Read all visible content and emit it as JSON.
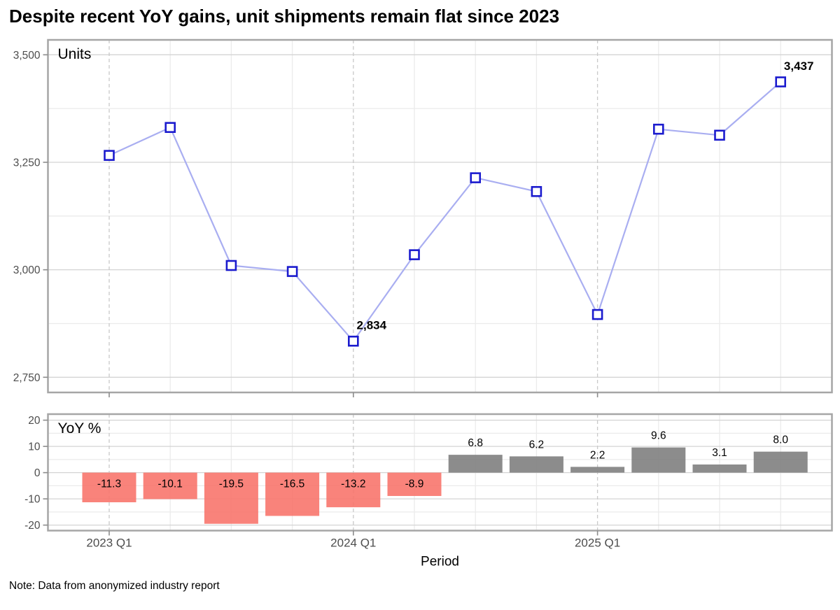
{
  "title": "Despite recent YoY gains, unit shipments remain flat since 2023",
  "note": "Note: Data from anonymized industry report",
  "x_axis": {
    "label": "Period",
    "ticks": [
      {
        "index": 0,
        "label": "2023 Q1"
      },
      {
        "index": 4,
        "label": "2024 Q1"
      },
      {
        "index": 8,
        "label": "2025 Q1"
      }
    ]
  },
  "colors": {
    "grid_major": "#d4d4d4",
    "grid_minor": "#ebebeb",
    "grid_dashed": "#c9c9c9",
    "panel_border": "#a6a6a6",
    "tick_mark": "#8c8c8c",
    "tick_text": "#4d4d4d",
    "label_text": "#000000",
    "line": "#a9aef1",
    "marker": "#1b1bce",
    "bar_positive": "#7f7f7f",
    "bar_negative": "#f8766d"
  },
  "chart_data": [
    {
      "type": "line",
      "title": "Units",
      "x": [
        "2023 Q1",
        "2023 Q2",
        "2023 Q3",
        "2023 Q4",
        "2024 Q1",
        "2024 Q2",
        "2024 Q3",
        "2024 Q4",
        "2025 Q1",
        "2025 Q2",
        "2025 Q3",
        "2025 Q4"
      ],
      "values": [
        3266,
        3331,
        3010,
        2996,
        2834,
        3035,
        3214,
        3182,
        2896,
        3327,
        3313,
        3437
      ],
      "annotations": [
        {
          "index": 4,
          "label": "2,834"
        },
        {
          "index": 11,
          "label": "3,437"
        }
      ],
      "ylim": [
        2714.7,
        3534.7
      ],
      "yticks": [
        2750,
        3000,
        3250,
        3500
      ],
      "ytick_labels": [
        "2,750",
        "3,000",
        "3,250",
        "3,500"
      ],
      "grid": true,
      "legend": "none"
    },
    {
      "type": "bar",
      "title": "YoY %",
      "x": [
        "2023 Q1",
        "2023 Q2",
        "2023 Q3",
        "2023 Q4",
        "2024 Q1",
        "2024 Q2",
        "2024 Q3",
        "2024 Q4",
        "2025 Q1",
        "2025 Q2",
        "2025 Q3",
        "2025 Q4"
      ],
      "values": [
        -11.3,
        -10.1,
        -19.5,
        -16.5,
        -13.2,
        -8.9,
        6.8,
        6.2,
        2.2,
        9.6,
        3.1,
        8.0
      ],
      "bar_labels": [
        "-11.3",
        "-10.1",
        "-19.5",
        "-16.5",
        "-13.2",
        "-8.9",
        "6.8",
        "6.2",
        "2.2",
        "9.6",
        "3.1",
        "8.0"
      ],
      "ylim": [
        -22.1,
        22.3
      ],
      "yticks": [
        20,
        10,
        0,
        -10,
        -20
      ],
      "ytick_labels": [
        "20",
        "10",
        "0",
        "-10",
        "-20"
      ],
      "grid": true,
      "legend": "none",
      "xlabel": "Period"
    }
  ]
}
